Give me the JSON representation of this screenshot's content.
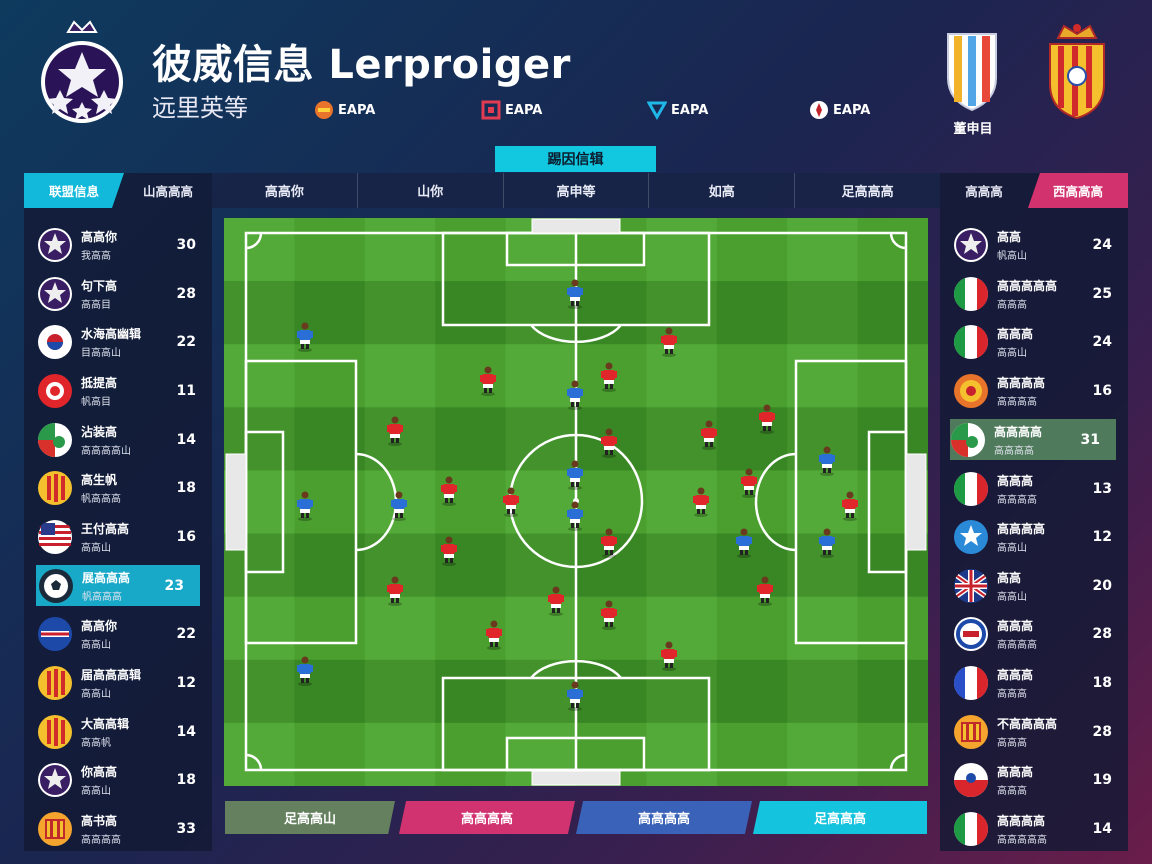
{
  "header": {
    "title": "彼威信息 Lerproiger",
    "subtitle": "远里英等",
    "sponsors": [
      {
        "label": "EAPA",
        "icon": "fan-flag-icon",
        "color": "#e8732a"
      },
      {
        "label": "EAPA",
        "icon": "square-logo-icon",
        "color": "#e23b52"
      },
      {
        "label": "EAPA",
        "icon": "triangle-logo-icon",
        "color": "#1fb6e8"
      },
      {
        "label": "EAPA",
        "icon": "circle-logo-icon",
        "color": "#ffffff"
      }
    ],
    "right_crest_label": "董申目"
  },
  "center_tab": "踢因信辑",
  "left_panel": {
    "tabs": [
      "联盟信息",
      "山高高高"
    ],
    "teams": [
      {
        "name": "高高你",
        "meta": "我高高",
        "score": "30",
        "badge": "star-ball"
      },
      {
        "name": "句下高",
        "meta": "高高目",
        "score": "28",
        "badge": "star-ball"
      },
      {
        "name": "水海高幽辑",
        "meta": "目高高山",
        "score": "22",
        "badge": "korea"
      },
      {
        "name": "抵提高",
        "meta": "帆高目",
        "score": "11",
        "badge": "red-crest"
      },
      {
        "name": "沾装高",
        "meta": "高高高高山",
        "score": "14",
        "badge": "green-red"
      },
      {
        "name": "高生帆",
        "meta": "帆高高高",
        "score": "18",
        "badge": "stripes-yellow"
      },
      {
        "name": "王付高高",
        "meta": "高高山",
        "score": "16",
        "badge": "usa"
      },
      {
        "name": "展高高高",
        "meta": "帆高高高",
        "score": "23",
        "badge": "ball",
        "highlight": true
      },
      {
        "name": "高高你",
        "meta": "高高山",
        "score": "22",
        "badge": "blue-red-stripe"
      },
      {
        "name": "届高高高辑",
        "meta": "高高山",
        "score": "12",
        "badge": "stripes-yellow"
      },
      {
        "name": "大高高辑",
        "meta": "高高帆",
        "score": "14",
        "badge": "stripes-yellow"
      },
      {
        "name": "你高高",
        "meta": "高高山",
        "score": "18",
        "badge": "star-ball"
      },
      {
        "name": "高书高",
        "meta": "高高高高",
        "score": "33",
        "badge": "crown-yellow"
      }
    ]
  },
  "center_header": [
    "高高你",
    "山你",
    "高申等",
    "如高",
    "足高高高"
  ],
  "right_panel": {
    "tabs": [
      "高高高",
      "西高高高"
    ],
    "teams": [
      {
        "name": "高高",
        "meta": "帆高山",
        "score": "24",
        "badge": "star-ball"
      },
      {
        "name": "高高高高高",
        "meta": "高高高",
        "score": "25",
        "badge": "italy"
      },
      {
        "name": "高高高",
        "meta": "高高山",
        "score": "24",
        "badge": "italy"
      },
      {
        "name": "高高高高",
        "meta": "高高高高",
        "score": "16",
        "badge": "orange-crest"
      },
      {
        "name": "高高高高",
        "meta": "高高高高",
        "score": "31",
        "badge": "green-red",
        "highlight": true
      },
      {
        "name": "高高高",
        "meta": "高高高高",
        "score": "13",
        "badge": "italy"
      },
      {
        "name": "高高高高",
        "meta": "高高山",
        "score": "12",
        "badge": "blue-star"
      },
      {
        "name": "高高",
        "meta": "高高山",
        "score": "20",
        "badge": "uk"
      },
      {
        "name": "高高高",
        "meta": "高高高高",
        "score": "28",
        "badge": "blue-ring"
      },
      {
        "name": "高高高",
        "meta": "高高高",
        "score": "18",
        "badge": "france"
      },
      {
        "name": "不高高高高",
        "meta": "高高高",
        "score": "28",
        "badge": "crown-yellow"
      },
      {
        "name": "高高高",
        "meta": "高高高",
        "score": "19",
        "badge": "red-white"
      },
      {
        "name": "高高高高",
        "meta": "高高高高高",
        "score": "14",
        "badge": "italy"
      }
    ]
  },
  "bottom_buttons": [
    {
      "label": "足高高山",
      "color": "#64805e"
    },
    {
      "label": "高高高高",
      "color": "#d03370"
    },
    {
      "label": "高高高高",
      "color": "#3a62b8"
    },
    {
      "label": "足高高高",
      "color": "#14c3dd"
    }
  ],
  "colors": {
    "pitch_light": "#4fa832",
    "pitch_dark": "#3d8f26",
    "team_blue": "#2a6fd6",
    "team_red": "#e0262a"
  }
}
